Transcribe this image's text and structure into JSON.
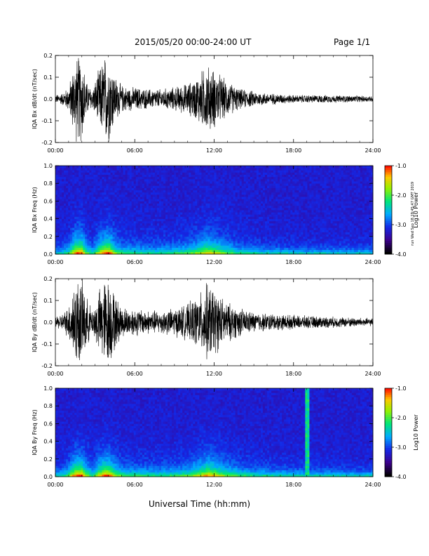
{
  "header": {
    "title": "2015/05/20  00:00-24:00 UT",
    "page": "Page 1/1"
  },
  "footer": {
    "xlabel": "Universal Time (hh:mm)",
    "stamp": "run Wed Sep 18 19:45:47 GMT 2019"
  },
  "colors": {
    "trace": "#000000",
    "spectrogram_low": "#3a0090",
    "spectrogram_mid": "#00c8ff",
    "spectrogram_high": "#ff2000"
  },
  "colorbar": {
    "label": "Log10 Power",
    "ticks": [
      "-1.0",
      "-2.0",
      "-3.0",
      "-4.0"
    ],
    "range": [
      -4.0,
      -1.0
    ]
  },
  "chart_data": [
    {
      "type": "line",
      "ylabel": "IQA Bx dB/dt (nT/sec)",
      "xticks": [
        "00:00",
        "06:00",
        "12:00",
        "18:00",
        "24:00"
      ],
      "yticks": [
        "0.2",
        "0.1",
        "0.0",
        "-0.1",
        "-0.2"
      ],
      "xlim": [
        0,
        24
      ],
      "ylim": [
        -0.2,
        0.2
      ],
      "envelope": {
        "x": [
          0,
          0.5,
          1.0,
          1.3,
          1.6,
          2.0,
          2.4,
          2.8,
          3.3,
          3.7,
          4.1,
          4.5,
          5.0,
          5.5,
          6.0,
          7.0,
          8.0,
          9.0,
          10.0,
          10.5,
          11.0,
          11.5,
          12.0,
          12.5,
          13.0,
          14.0,
          15.0,
          16.0,
          17.0,
          18.0,
          20.0,
          22.0,
          24.0
        ],
        "amplitude": [
          0.02,
          0.03,
          0.06,
          0.15,
          0.22,
          0.22,
          0.08,
          0.05,
          0.15,
          0.22,
          0.22,
          0.12,
          0.07,
          0.06,
          0.06,
          0.05,
          0.05,
          0.06,
          0.08,
          0.1,
          0.14,
          0.17,
          0.15,
          0.12,
          0.09,
          0.05,
          0.04,
          0.03,
          0.025,
          0.02,
          0.02,
          0.018,
          0.015
        ]
      }
    },
    {
      "type": "heatmap",
      "ylabel": "IQA Bx Freq (Hz)",
      "xticks": [
        "00:00",
        "06:00",
        "12:00",
        "18:00",
        "24:00"
      ],
      "yticks": [
        "1.0",
        "0.8",
        "0.6",
        "0.4",
        "0.2",
        "0.0"
      ],
      "xlim": [
        0,
        24
      ],
      "ylim": [
        0,
        1.0
      ],
      "zrange": [
        -4.0,
        -1.0
      ],
      "vertical_bands_hours": []
    },
    {
      "type": "line",
      "ylabel": "IQA By dB/dt (nT/sec)",
      "xticks": [
        "00:00",
        "06:00",
        "12:00",
        "18:00",
        "24:00"
      ],
      "yticks": [
        "0.2",
        "0.1",
        "0.0",
        "-0.1",
        "-0.2"
      ],
      "xlim": [
        0,
        24
      ],
      "ylim": [
        -0.2,
        0.2
      ],
      "envelope": {
        "x": [
          0,
          0.5,
          1.0,
          1.3,
          1.6,
          2.0,
          2.4,
          2.8,
          3.3,
          3.7,
          4.1,
          4.5,
          5.0,
          5.5,
          6.0,
          7.0,
          8.0,
          9.0,
          10.0,
          10.5,
          11.0,
          11.5,
          12.0,
          12.5,
          13.0,
          14.0,
          15.0,
          16.0,
          17.0,
          18.0,
          20.0,
          22.0,
          24.0
        ],
        "amplitude": [
          0.03,
          0.04,
          0.08,
          0.18,
          0.22,
          0.22,
          0.12,
          0.06,
          0.16,
          0.22,
          0.22,
          0.14,
          0.08,
          0.07,
          0.07,
          0.06,
          0.06,
          0.07,
          0.09,
          0.12,
          0.15,
          0.2,
          0.17,
          0.13,
          0.1,
          0.07,
          0.05,
          0.045,
          0.04,
          0.035,
          0.03,
          0.025,
          0.02
        ]
      }
    },
    {
      "type": "heatmap",
      "ylabel": "IQA By Freq (Hz)",
      "xticks": [
        "00:00",
        "06:00",
        "12:00",
        "18:00",
        "24:00"
      ],
      "yticks": [
        "1.0",
        "0.8",
        "0.6",
        "0.4",
        "0.2",
        "0.0"
      ],
      "xlim": [
        0,
        24
      ],
      "ylim": [
        0,
        1.0
      ],
      "zrange": [
        -4.0,
        -1.0
      ],
      "vertical_bands_hours": [
        19.0
      ]
    }
  ]
}
